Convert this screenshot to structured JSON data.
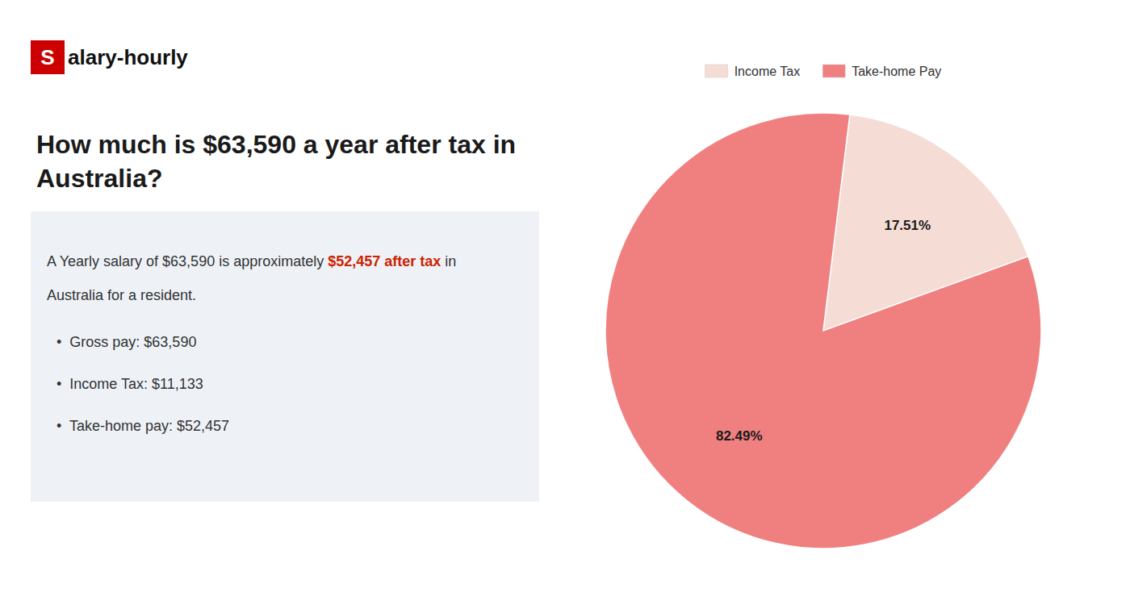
{
  "chart_data": {
    "type": "pie",
    "title": "How much is $63,590 a year after tax in\nAustralia?",
    "annotations": [
      "S",
      "alary-hourly",
      "A Yearly salary of $63,590 is approximately ",
      "$52,457 after tax",
      " in",
      "Australia for a resident.",
      "•  Gross pay: $63,590",
      "•  Income Tax: $11,133",
      "•  Take-home pay: $52,457"
    ],
    "categories": [
      "Income Tax",
      "Take-home Pay"
    ],
    "values": [
      17.51,
      82.49
    ],
    "value_labels": [
      "17.51%",
      "82.49%"
    ],
    "data_labels": true,
    "colors": [
      "#f5ddd5",
      "#f08080"
    ],
    "legend": "top"
  }
}
